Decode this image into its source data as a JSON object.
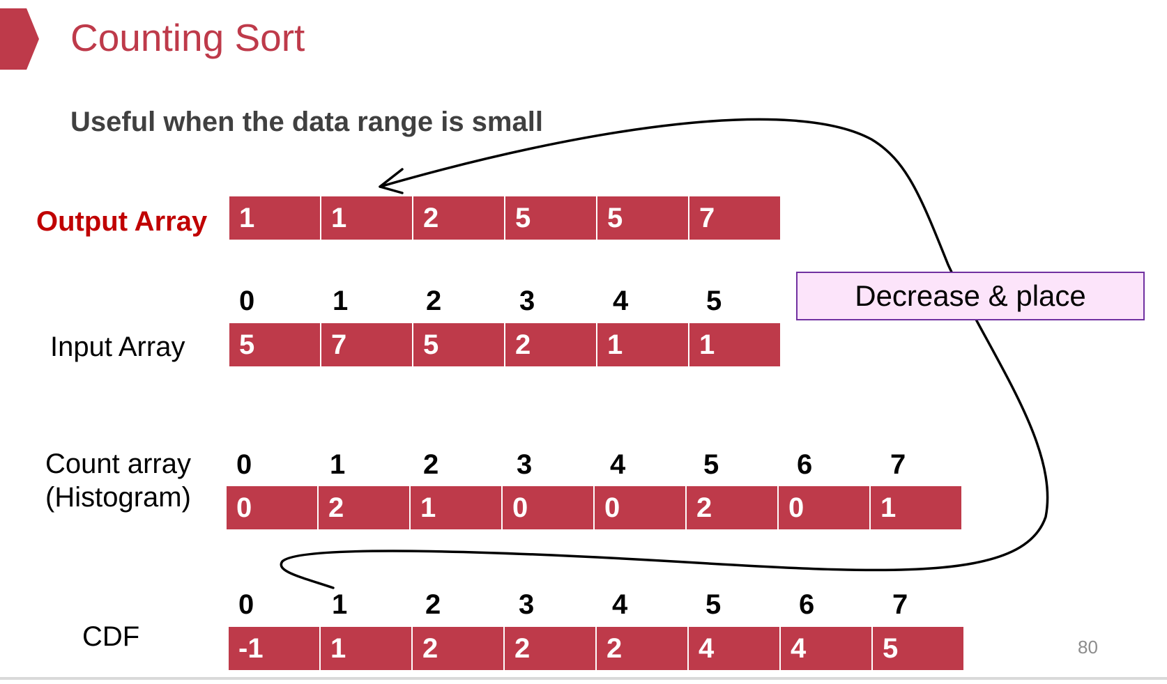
{
  "slide": {
    "title": "Counting Sort",
    "subtitle": "Useful when the data range is small",
    "page_number": "80",
    "callout": "Decrease & place"
  },
  "colors": {
    "accent": "#be3a4a",
    "output_label": "#c00000",
    "callout_fill": "#fce4fa",
    "callout_border": "#7030a0"
  },
  "rows": {
    "output": {
      "label": "Output Array",
      "values": [
        "1",
        "1",
        "2",
        "5",
        "5",
        "7"
      ]
    },
    "input": {
      "label": "Input Array",
      "indices": [
        "0",
        "1",
        "2",
        "3",
        "4",
        "5"
      ],
      "values": [
        "5",
        "7",
        "5",
        "2",
        "1",
        "1"
      ]
    },
    "count": {
      "label_line1": "Count array",
      "label_line2": "(Histogram)",
      "indices": [
        "0",
        "1",
        "2",
        "3",
        "4",
        "5",
        "6",
        "7"
      ],
      "values": [
        "0",
        "2",
        "1",
        "0",
        "0",
        "2",
        "0",
        "1"
      ]
    },
    "cdf": {
      "label": "CDF",
      "indices": [
        "0",
        "1",
        "2",
        "3",
        "4",
        "5",
        "6",
        "7"
      ],
      "values": [
        "-1",
        "1",
        "2",
        "2",
        "2",
        "4",
        "4",
        "5"
      ]
    }
  }
}
